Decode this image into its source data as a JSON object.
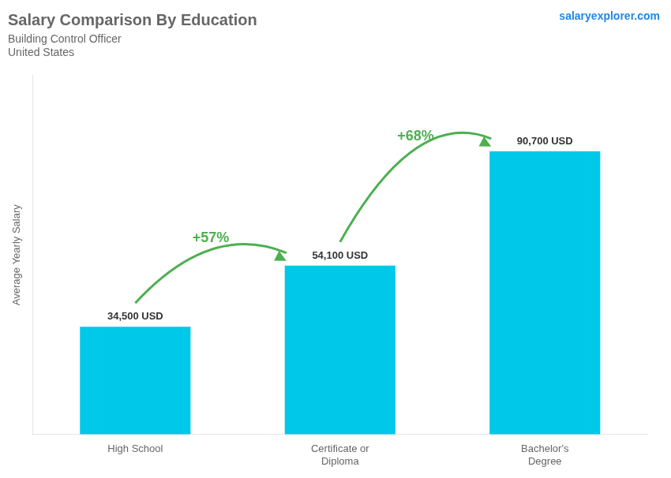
{
  "chart_data": {
    "type": "bar",
    "title": "Salary Comparison By Education",
    "subtitle": "Building Control Officer",
    "country": "United States",
    "brand": "salaryexplorer.com",
    "ylabel": "Average Yearly Salary",
    "categories": [
      "High School",
      "Certificate or\nDiploma",
      "Bachelor's\nDegree"
    ],
    "values": [
      34500,
      54100,
      90700
    ],
    "value_labels": [
      "34,500 USD",
      "54,100 USD",
      "90,700 USD"
    ],
    "data_labels": true,
    "color": "#00c8e8",
    "ylim": [
      0,
      115000
    ],
    "annotations": [
      "+57%",
      "+68%"
    ],
    "grid": false,
    "tick_labels": "x"
  }
}
